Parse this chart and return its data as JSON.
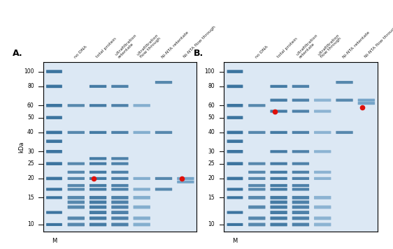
{
  "fig_width": 5.62,
  "fig_height": 3.57,
  "background_color": "#ffffff",
  "panel_bg": "#dce8f4",
  "band_color_dark": "#2a6896",
  "band_color_med": "#4a88b6",
  "band_color_light": "#7aaac6",
  "red_dot_color": "#e0100a",
  "panel_A_label": "A.",
  "panel_B_label": "B.",
  "kda_label": "kDa",
  "marker_label": "M",
  "col_labels": [
    "no DNA",
    "total protein",
    "ultrafiltration\nretentate",
    "ultrafiltration\nflow through",
    "Ni-NTA retentate",
    "Ni-NTA flow through"
  ],
  "mw_ticks": [
    100,
    80,
    60,
    50,
    40,
    30,
    25,
    20,
    15,
    10
  ],
  "mw_min": 9,
  "mw_max": 115,
  "red_dots_A": [
    {
      "col": 1,
      "mw": 20
    },
    {
      "col": 5,
      "mw": 20
    }
  ],
  "red_dots_B": [
    {
      "col": 1,
      "mw": 55
    },
    {
      "col": 5,
      "mw": 58
    }
  ],
  "marker_bands": [
    100,
    80,
    60,
    50,
    40,
    35,
    30,
    25,
    20,
    17,
    15,
    12,
    10
  ],
  "panel_A_bands": {
    "col0": {
      "mws": [
        60,
        40,
        25,
        22,
        20,
        18,
        17,
        15,
        14,
        13,
        11,
        10
      ],
      "alpha": 0.75,
      "color": "dark"
    },
    "col1": {
      "mws": [
        80,
        60,
        40,
        27,
        25,
        22,
        20,
        18,
        17,
        15,
        14,
        13,
        12,
        11,
        10
      ],
      "alpha": 0.85,
      "color": "dark"
    },
    "col2": {
      "mws": [
        80,
        60,
        40,
        27,
        25,
        22,
        20,
        18,
        17,
        15,
        14,
        13,
        12,
        11,
        10
      ],
      "alpha": 0.8,
      "color": "dark"
    },
    "col3": {
      "mws": [
        60,
        40,
        20,
        17,
        15,
        13,
        11,
        10
      ],
      "alpha": 0.6,
      "color": "med"
    },
    "col4": {
      "mws": [
        85,
        40,
        20,
        17
      ],
      "alpha": 0.75,
      "color": "dark"
    },
    "col5": {
      "mws": [
        20,
        19
      ],
      "alpha": 0.7,
      "color": "med"
    }
  },
  "panel_B_bands": {
    "col0": {
      "mws": [
        60,
        40,
        25,
        22,
        20,
        18,
        17,
        15,
        13,
        11,
        10
      ],
      "alpha": 0.75,
      "color": "dark"
    },
    "col1": {
      "mws": [
        80,
        65,
        55,
        40,
        30,
        25,
        22,
        20,
        18,
        17,
        15,
        14,
        13,
        12,
        11,
        10
      ],
      "alpha": 0.85,
      "color": "dark"
    },
    "col2": {
      "mws": [
        80,
        65,
        55,
        40,
        30,
        25,
        22,
        20,
        18,
        17,
        15,
        14,
        13,
        12,
        11,
        10
      ],
      "alpha": 0.8,
      "color": "dark"
    },
    "col3": {
      "mws": [
        65,
        55,
        40,
        30,
        22,
        20,
        15,
        13,
        11,
        10
      ],
      "alpha": 0.55,
      "color": "med"
    },
    "col4": {
      "mws": [
        85,
        65,
        40
      ],
      "alpha": 0.75,
      "color": "dark"
    },
    "col5": {
      "mws": [
        65,
        62
      ],
      "alpha": 0.7,
      "color": "med"
    }
  }
}
